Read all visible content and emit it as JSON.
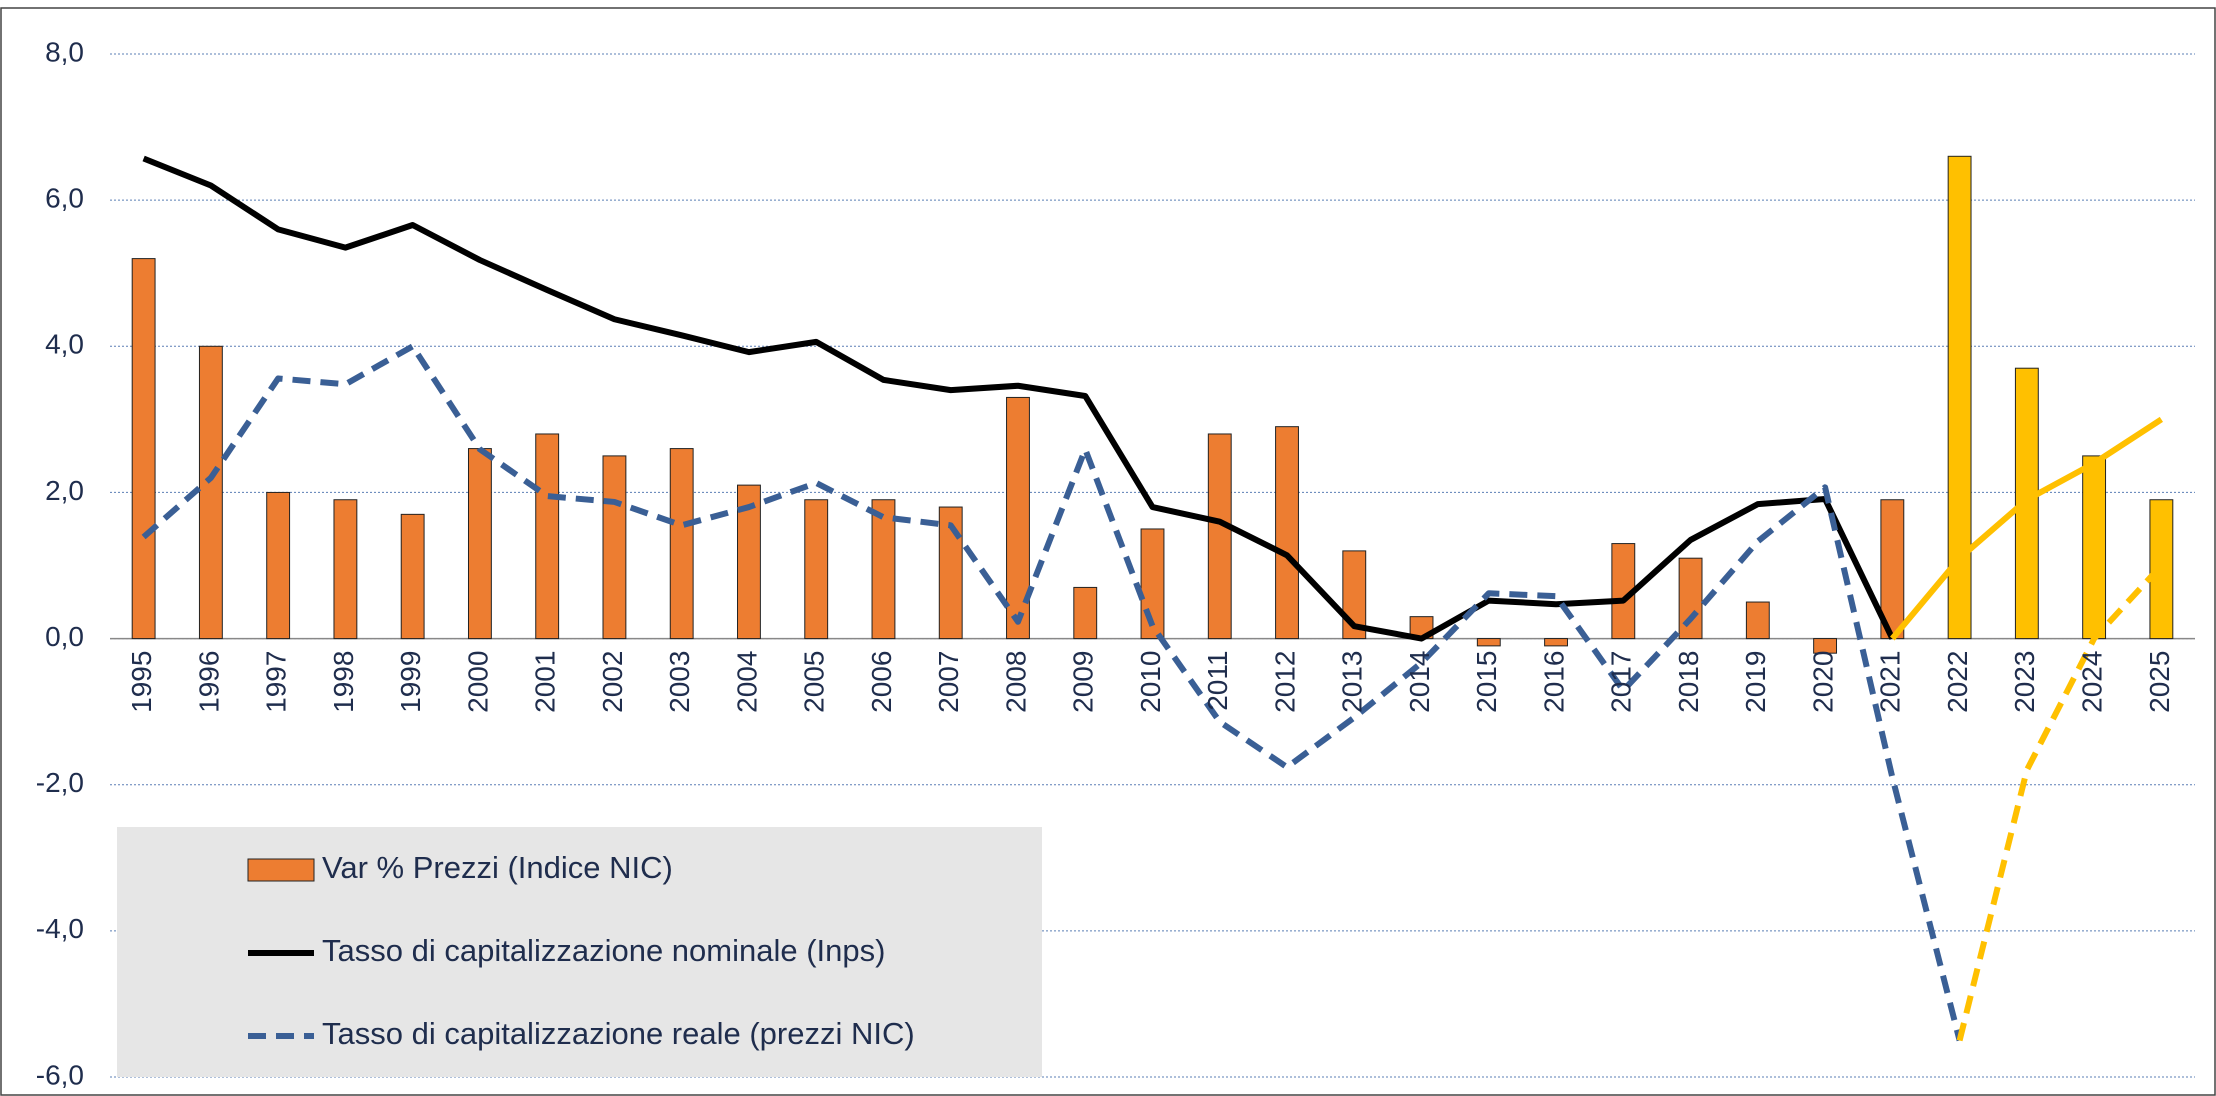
{
  "chart_data": {
    "type": "bar_line",
    "categories": [
      "1995",
      "1996",
      "1997",
      "1998",
      "1999",
      "2000",
      "2001",
      "2002",
      "2003",
      "2004",
      "2005",
      "2006",
      "2007",
      "2008",
      "2009",
      "2010",
      "2011",
      "2012",
      "2013",
      "2014",
      "2015",
      "2016",
      "2017",
      "2018",
      "2019",
      "2020",
      "2021",
      "2022",
      "2023",
      "2024",
      "2025"
    ],
    "series": [
      {
        "name": "Var % Prezzi (Indice NIC)",
        "type": "bar",
        "color": "#ed7d31",
        "forecast_color": "#ffc000",
        "forecast_from": "2022",
        "values": [
          5.2,
          4.0,
          2.0,
          1.9,
          1.7,
          2.6,
          2.8,
          2.5,
          2.6,
          2.1,
          1.9,
          1.9,
          1.8,
          3.3,
          0.7,
          1.5,
          2.8,
          2.9,
          1.2,
          0.3,
          -0.1,
          -0.1,
          1.3,
          1.1,
          0.5,
          -0.2,
          1.9,
          6.6,
          3.7,
          2.5,
          1.9
        ]
      },
      {
        "name": "Tasso di capitalizzazione nominale (Inps)",
        "type": "line",
        "dash": false,
        "color": "#000000",
        "forecast_color": "#ffc000",
        "forecast_from": "2021",
        "values": [
          6.57,
          6.2,
          5.6,
          5.35,
          5.66,
          5.18,
          4.77,
          4.37,
          4.15,
          3.92,
          4.06,
          3.54,
          3.4,
          3.46,
          3.32,
          1.8,
          1.6,
          1.14,
          0.17,
          0.0,
          0.52,
          0.47,
          0.52,
          1.35,
          1.84,
          1.91,
          0.0,
          1.1,
          1.9,
          2.4,
          3.0
        ]
      },
      {
        "name": "Tasso di capitalizzazione reale (prezzi NIC)",
        "type": "line",
        "dash": true,
        "color": "#3a5f95",
        "forecast_color": "#ffc000",
        "forecast_from": "2022",
        "values": [
          1.39,
          2.2,
          3.56,
          3.48,
          4.0,
          2.59,
          1.95,
          1.87,
          1.55,
          1.8,
          2.13,
          1.66,
          1.55,
          0.23,
          2.59,
          0.17,
          -1.14,
          -1.76,
          -1.08,
          -0.33,
          0.62,
          0.58,
          -0.71,
          0.27,
          1.33,
          2.07,
          -1.9,
          -5.5,
          -1.8,
          0.0,
          1.0
        ]
      }
    ],
    "ylim": [
      -6,
      8
    ],
    "yticks": [
      {
        "value": -6,
        "label": "-6,0"
      },
      {
        "value": -4,
        "label": "-4,0"
      },
      {
        "value": -2,
        "label": "-2,0"
      },
      {
        "value": 0,
        "label": "0,0"
      },
      {
        "value": 2,
        "label": "2,0"
      },
      {
        "value": 4,
        "label": "4,0"
      },
      {
        "value": 6,
        "label": "6,0"
      },
      {
        "value": 8,
        "label": "8,0"
      }
    ],
    "grid": true,
    "legend": "lower left"
  }
}
